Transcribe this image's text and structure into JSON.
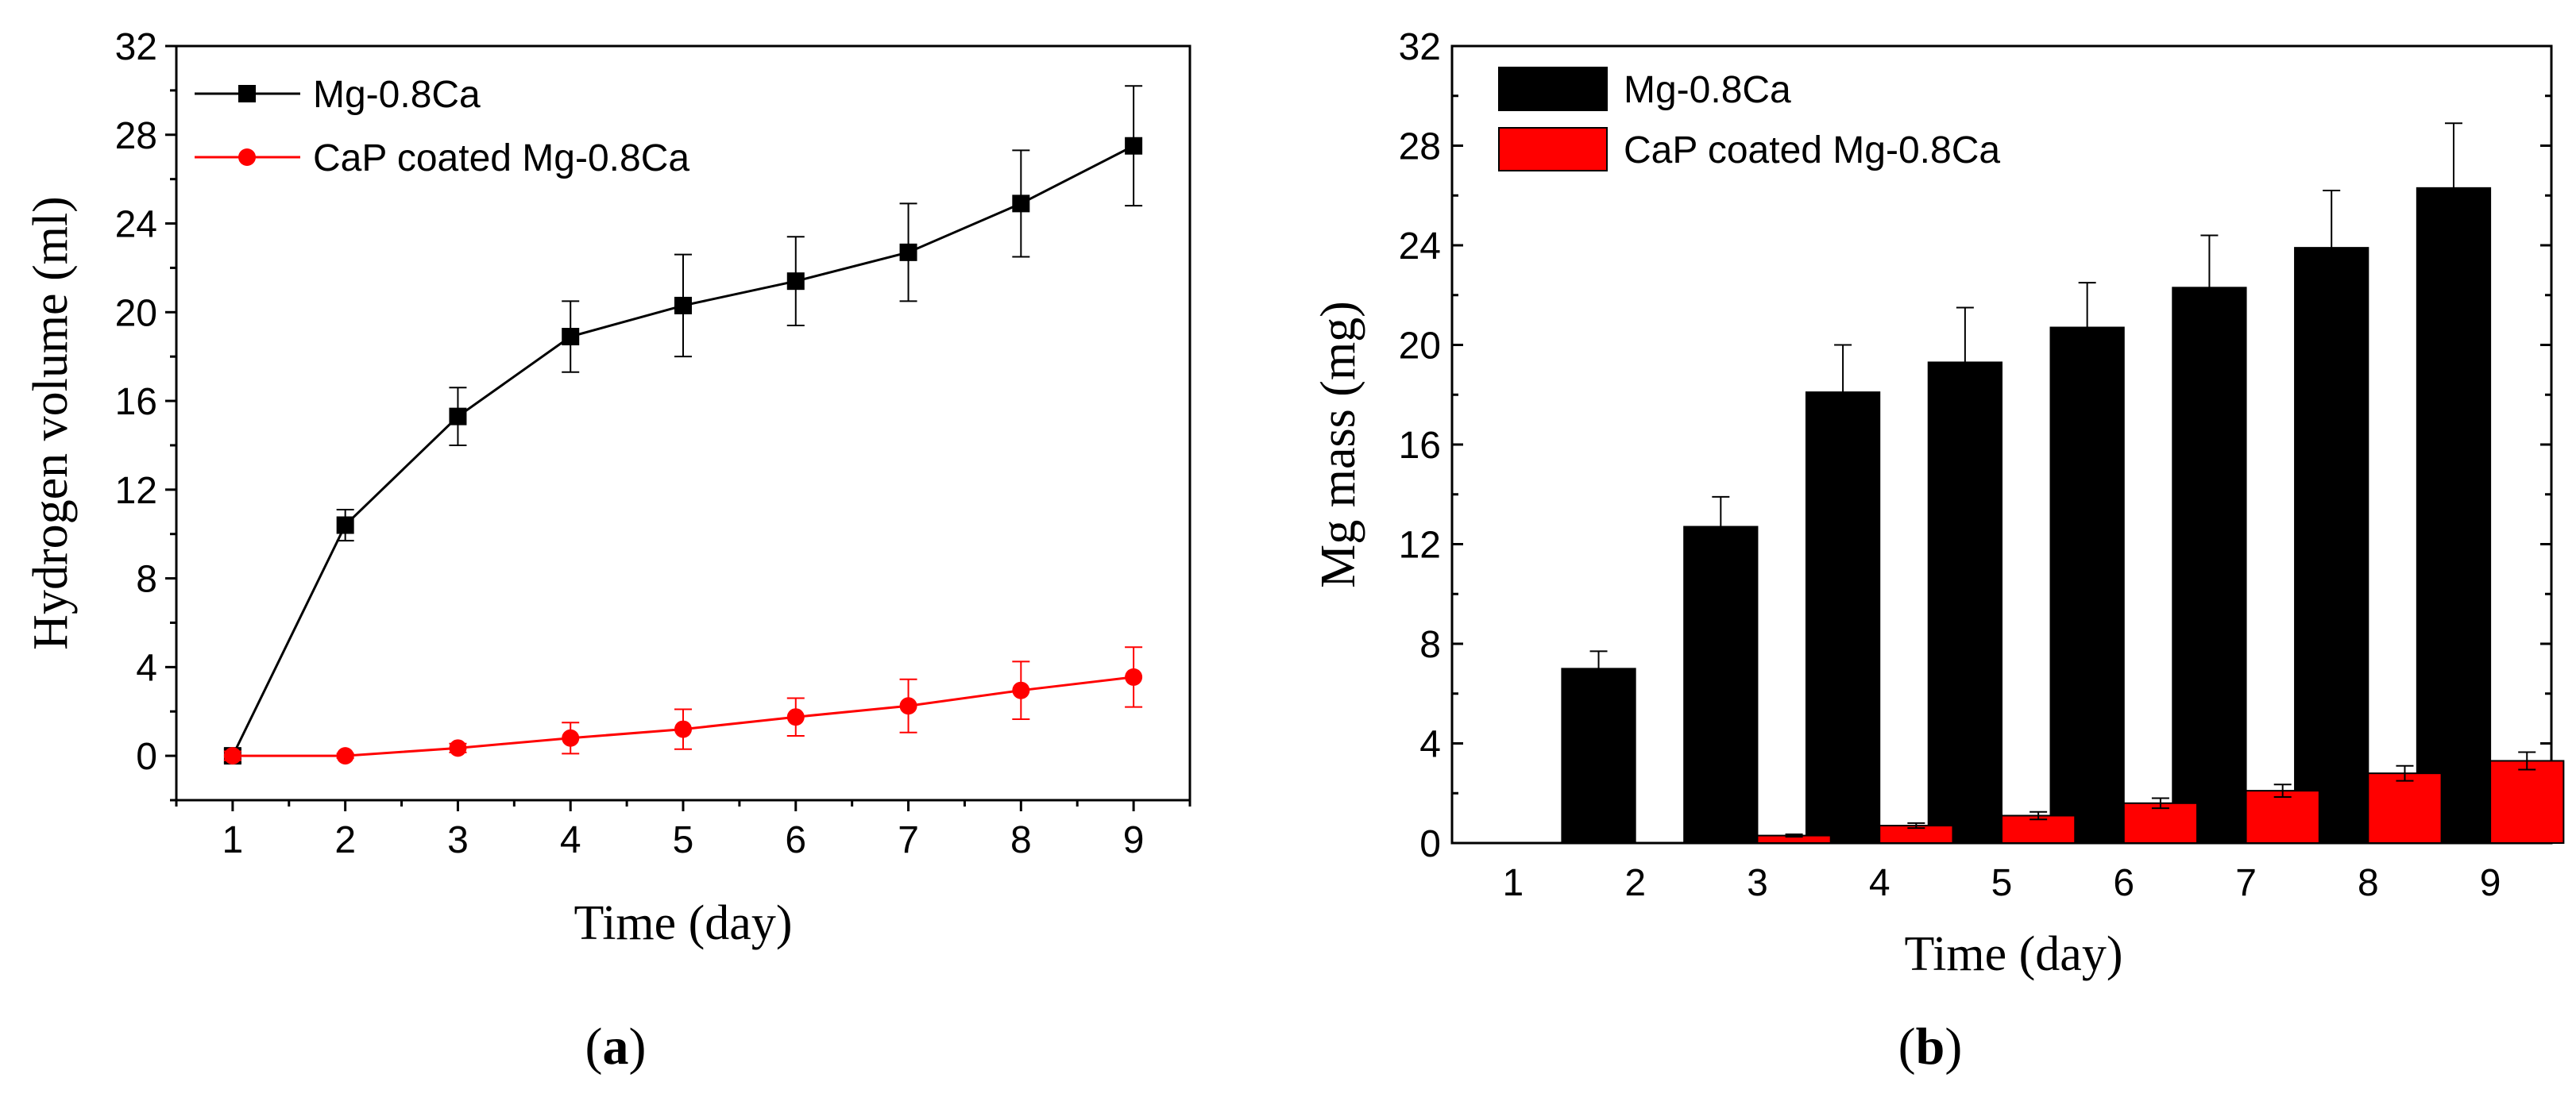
{
  "colors": {
    "series1": "#000000",
    "series2": "#ff0000",
    "axis": "#000000"
  },
  "panel_labels": {
    "a": {
      "open": "(",
      "letter": "a",
      "close": ")"
    },
    "b": {
      "open": "(",
      "letter": "b",
      "close": ")"
    }
  },
  "chart_data": [
    {
      "type": "line",
      "title": "",
      "xlabel": "Time (day)",
      "ylabel": "Hydrogen volume (ml)",
      "x": [
        1,
        2,
        3,
        4,
        5,
        6,
        7,
        8,
        9
      ],
      "xlim": [
        0.5,
        9.5
      ],
      "ylim": [
        -2,
        32
      ],
      "xticks": [
        "1",
        "2",
        "3",
        "4",
        "5",
        "6",
        "7",
        "8",
        "9"
      ],
      "yticks": [
        "0",
        "4",
        "8",
        "12",
        "16",
        "20",
        "24",
        "28",
        "32"
      ],
      "legend_position": "top-left",
      "series": [
        {
          "name": "Mg-0.8Ca",
          "marker": "square",
          "values": [
            0.0,
            10.4,
            15.3,
            18.9,
            20.3,
            21.4,
            22.7,
            24.9,
            27.5
          ],
          "errors": [
            0.3,
            0.7,
            1.3,
            1.6,
            2.3,
            2.0,
            2.2,
            2.4,
            2.7
          ]
        },
        {
          "name": "CaP coated Mg-0.8Ca",
          "marker": "circle",
          "values": [
            0.0,
            0.0,
            0.35,
            0.8,
            1.2,
            1.75,
            2.25,
            2.95,
            3.55
          ],
          "errors": [
            0.2,
            0.1,
            0.2,
            0.7,
            0.9,
            0.85,
            1.2,
            1.3,
            1.35
          ]
        }
      ]
    },
    {
      "type": "bar",
      "title": "",
      "xlabel": "Time (day)",
      "ylabel": "Mg mass (mg)",
      "categories": [
        "1",
        "2",
        "3",
        "4",
        "5",
        "6",
        "7",
        "8",
        "9"
      ],
      "xlim": [
        0.5,
        9.5
      ],
      "ylim": [
        0,
        32
      ],
      "yticks": [
        "0",
        "4",
        "8",
        "12",
        "16",
        "20",
        "24",
        "28",
        "32"
      ],
      "legend_position": "top-left",
      "series": [
        {
          "name": "Mg-0.8Ca",
          "values": [
            0,
            7.0,
            12.7,
            18.1,
            19.3,
            20.7,
            22.3,
            23.9,
            26.3
          ],
          "errors": [
            0,
            0.7,
            1.2,
            1.9,
            2.2,
            1.8,
            2.1,
            2.3,
            2.6
          ]
        },
        {
          "name": "CaP coated Mg-0.8Ca",
          "values": [
            0,
            0,
            0.3,
            0.7,
            1.1,
            1.6,
            2.1,
            2.8,
            3.3
          ],
          "errors": [
            0,
            0,
            0.05,
            0.1,
            0.15,
            0.2,
            0.25,
            0.3,
            0.35
          ]
        }
      ]
    }
  ]
}
